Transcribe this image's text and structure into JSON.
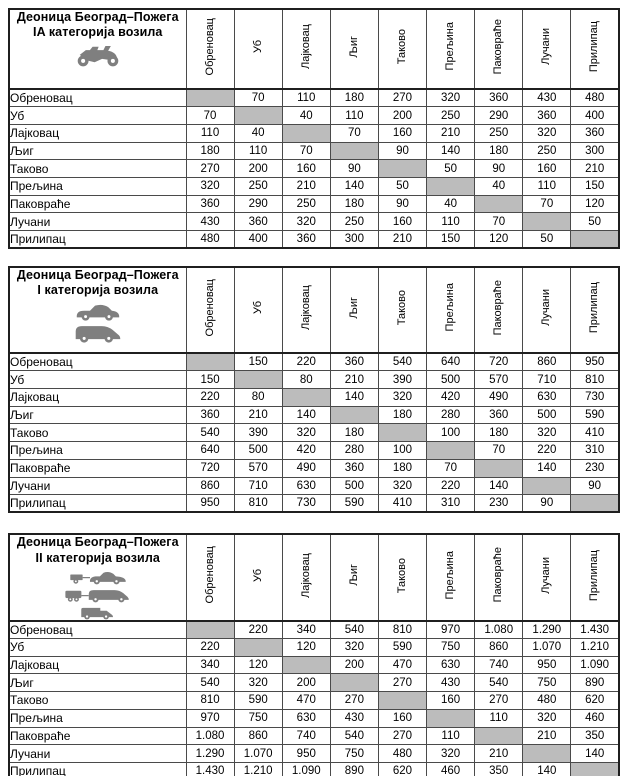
{
  "colors": {
    "diagonal_cell": "#bcbcbc",
    "grid_line": "#4a4a4a",
    "outer_border": "#1f1f1f",
    "icon_gray": "#7f7f7f",
    "text": "#000000"
  },
  "columns": [
    "Обреновац",
    "Уб",
    "Лајковац",
    "Љиг",
    "Таково",
    "Прељина",
    "Паковраће",
    "Лучани",
    "Прилипац"
  ],
  "tables": [
    {
      "title_line1": "Деоница Београд–Пожега",
      "title_line2": "IA категорија возила",
      "icons": [
        "motorcycle-icon"
      ],
      "rows": [
        {
          "label": "Обреновац",
          "values": [
            "",
            "70",
            "110",
            "180",
            "270",
            "320",
            "360",
            "430",
            "480"
          ]
        },
        {
          "label": "Уб",
          "values": [
            "70",
            "",
            "40",
            "110",
            "200",
            "250",
            "290",
            "360",
            "400"
          ]
        },
        {
          "label": "Лајковац",
          "values": [
            "110",
            "40",
            "",
            "70",
            "160",
            "210",
            "250",
            "320",
            "360"
          ]
        },
        {
          "label": "Љиг",
          "values": [
            "180",
            "110",
            "70",
            "",
            "90",
            "140",
            "180",
            "250",
            "300"
          ]
        },
        {
          "label": "Таково",
          "values": [
            "270",
            "200",
            "160",
            "90",
            "",
            "50",
            "90",
            "160",
            "210"
          ]
        },
        {
          "label": "Прељина",
          "values": [
            "320",
            "250",
            "210",
            "140",
            "50",
            "",
            "40",
            "110",
            "150"
          ]
        },
        {
          "label": "Паковраће",
          "values": [
            "360",
            "290",
            "250",
            "180",
            "90",
            "40",
            "",
            "70",
            "120"
          ]
        },
        {
          "label": "Лучани",
          "values": [
            "430",
            "360",
            "320",
            "250",
            "160",
            "110",
            "70",
            "",
            "50"
          ]
        },
        {
          "label": "Прилипац",
          "values": [
            "480",
            "400",
            "360",
            "300",
            "210",
            "150",
            "120",
            "50",
            ""
          ]
        }
      ]
    },
    {
      "title_line1": "Деоница Београд–Пожега",
      "title_line2": "I категорија возила",
      "icons": [
        "car-icon",
        "minibus-icon"
      ],
      "rows": [
        {
          "label": "Обреновац",
          "values": [
            "",
            "150",
            "220",
            "360",
            "540",
            "640",
            "720",
            "860",
            "950"
          ]
        },
        {
          "label": "Уб",
          "values": [
            "150",
            "",
            "80",
            "210",
            "390",
            "500",
            "570",
            "710",
            "810"
          ]
        },
        {
          "label": "Лајковац",
          "values": [
            "220",
            "80",
            "",
            "140",
            "320",
            "420",
            "490",
            "630",
            "730"
          ]
        },
        {
          "label": "Љиг",
          "values": [
            "360",
            "210",
            "140",
            "",
            "180",
            "280",
            "360",
            "500",
            "590"
          ]
        },
        {
          "label": "Таково",
          "values": [
            "540",
            "390",
            "320",
            "180",
            "",
            "100",
            "180",
            "320",
            "410"
          ]
        },
        {
          "label": "Прељина",
          "values": [
            "640",
            "500",
            "420",
            "280",
            "100",
            "",
            "70",
            "220",
            "310"
          ]
        },
        {
          "label": "Паковраће",
          "values": [
            "720",
            "570",
            "490",
            "360",
            "180",
            "70",
            "",
            "140",
            "230"
          ]
        },
        {
          "label": "Лучани",
          "values": [
            "860",
            "710",
            "630",
            "500",
            "320",
            "220",
            "140",
            "",
            "90"
          ]
        },
        {
          "label": "Прилипац",
          "values": [
            "950",
            "810",
            "730",
            "590",
            "410",
            "310",
            "230",
            "90",
            ""
          ]
        }
      ]
    },
    {
      "title_line1": "Деоница Београд–Пожега",
      "title_line2": "II категорија возила",
      "icons": [
        "car-trailer-icon",
        "van-trailer-icon",
        "cargo-van-icon"
      ],
      "rows": [
        {
          "label": "Обреновац",
          "values": [
            "",
            "220",
            "340",
            "540",
            "810",
            "970",
            "1.080",
            "1.290",
            "1.430"
          ]
        },
        {
          "label": "Уб",
          "values": [
            "220",
            "",
            "120",
            "320",
            "590",
            "750",
            "860",
            "1.070",
            "1.210"
          ]
        },
        {
          "label": "Лајковац",
          "values": [
            "340",
            "120",
            "",
            "200",
            "470",
            "630",
            "740",
            "950",
            "1.090"
          ]
        },
        {
          "label": "Љиг",
          "values": [
            "540",
            "320",
            "200",
            "",
            "270",
            "430",
            "540",
            "750",
            "890"
          ]
        },
        {
          "label": "Таково",
          "values": [
            "810",
            "590",
            "470",
            "270",
            "",
            "160",
            "270",
            "480",
            "620"
          ]
        },
        {
          "label": "Прељина",
          "values": [
            "970",
            "750",
            "630",
            "430",
            "160",
            "",
            "110",
            "320",
            "460"
          ]
        },
        {
          "label": "Паковраће",
          "values": [
            "1.080",
            "860",
            "740",
            "540",
            "270",
            "110",
            "",
            "210",
            "350"
          ]
        },
        {
          "label": "Лучани",
          "values": [
            "1.290",
            "1.070",
            "950",
            "750",
            "480",
            "320",
            "210",
            "",
            "140"
          ]
        },
        {
          "label": "Прилипац",
          "values": [
            "1.430",
            "1.210",
            "1.090",
            "890",
            "620",
            "460",
            "350",
            "140",
            ""
          ]
        }
      ]
    }
  ]
}
